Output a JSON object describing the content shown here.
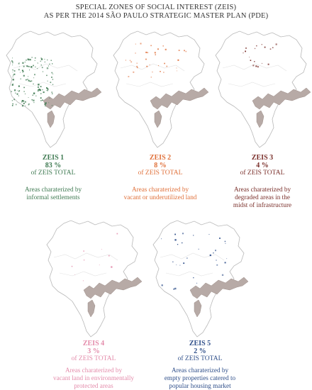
{
  "title": {
    "line1": "SPECIAL ZONES OF SOCIAL INTEREST (ZEIS)",
    "line2": "AS PER THE 2014 SÃO PAULO STRATEGIC MASTER PLAN (PDE)"
  },
  "zones": [
    {
      "name": "ZEIS 1",
      "percent": "83 %",
      "total_label": "of ZEIS TOTAL",
      "desc_lines": [
        "Areas charaterized by",
        "informal settlements"
      ],
      "color": "#3f7a52"
    },
    {
      "name": "ZEIS 2",
      "percent": "8 %",
      "total_label": "of ZEIS TOTAL",
      "desc_lines": [
        "Areas charaterized by",
        "vacant or underutilized land"
      ],
      "color": "#e0703a"
    },
    {
      "name": "ZEIS 3",
      "percent": "4 %",
      "total_label": "of ZEIS TOTAL",
      "desc_lines": [
        "Areas charaterized by",
        "degraded areas in the",
        "midst of infrastructure"
      ],
      "color": "#7a2f2a"
    },
    {
      "name": "ZEIS 4",
      "percent": "3 %",
      "total_label": "of ZEIS TOTAL",
      "desc_lines": [
        "Areas charaterized by",
        "vacant land in environmentally",
        "protected areas"
      ],
      "color": "#e48cab"
    },
    {
      "name": "ZEIS 5",
      "percent": "2 %",
      "total_label": "of ZEIS TOTAL",
      "desc_lines": [
        "Areas charaterized by",
        "empty properties catered to",
        "popular housing market"
      ],
      "color": "#2f4f8a"
    }
  ],
  "colors": {
    "city_outline": "#b8b8b8",
    "reservoir": "#b7aaa6",
    "text": "#333333"
  }
}
